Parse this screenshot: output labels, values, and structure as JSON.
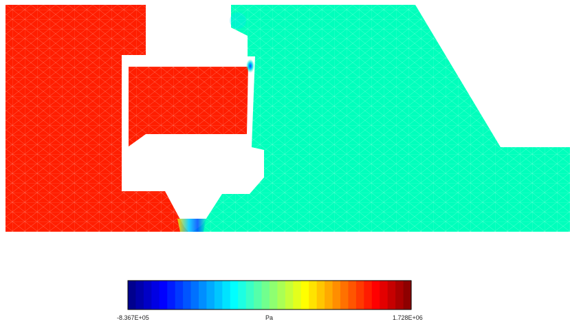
{
  "colors": {
    "high_pressure": "#ff1e00",
    "low_pressure": "#00ffbc",
    "background": "#ffffff",
    "mesh_lines": "#ffffff"
  },
  "colorbar": {
    "min_label": "-8.367E+05",
    "unit_label": "Pa",
    "max_label": "1.728E+06",
    "min_value": -836700,
    "max_value": 1728000,
    "bands": 36,
    "colormap": "jet"
  }
}
